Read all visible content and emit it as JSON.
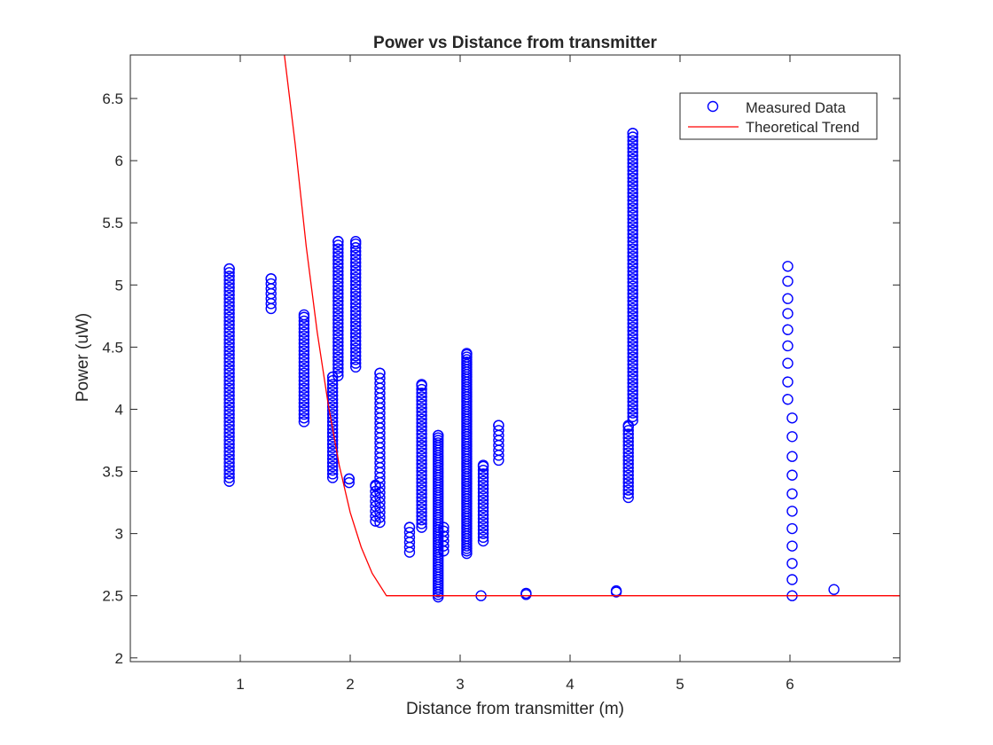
{
  "chart_data": {
    "type": "scatter",
    "title": "Power vs Distance from transmitter",
    "xlabel": "Distance from transmitter (m)",
    "ylabel": "Power (uW)",
    "xlim": [
      0.0,
      7.0
    ],
    "ylim": [
      1.97,
      6.85
    ],
    "xticks": [
      1,
      2,
      3,
      4,
      5,
      6
    ],
    "yticks": [
      2,
      2.5,
      3,
      3.5,
      4,
      4.5,
      5,
      5.5,
      6,
      6.5
    ],
    "grid": false,
    "legend_position": "top-right",
    "colors": {
      "measured": "#0000ff",
      "theoretical": "#ff0000",
      "text": "#262626",
      "axes": "#262626"
    },
    "series": [
      {
        "name": "Measured Data",
        "kind": "markers",
        "marker": "circle",
        "color": "#0000ff",
        "columns": [
          {
            "x": 0.9,
            "y_min": 3.42,
            "y_max": 5.13,
            "step": 0.03
          },
          {
            "x": 1.28,
            "y_min": 4.81,
            "y_max": 5.05,
            "step": 0.04
          },
          {
            "x": 1.58,
            "y_min": 3.9,
            "y_max": 4.76,
            "step": 0.03
          },
          {
            "x": 1.84,
            "y_min": 3.45,
            "y_max": 4.26,
            "step": 0.03
          },
          {
            "x": 1.89,
            "y_min": 4.27,
            "y_max": 5.35,
            "step": 0.03
          },
          {
            "x": 1.99,
            "y_min": 3.41,
            "y_max": 3.44,
            "step": 0.03
          },
          {
            "x": 2.05,
            "y_min": 4.34,
            "y_max": 5.35,
            "step": 0.03
          },
          {
            "x": 2.23,
            "y_min": 3.1,
            "y_max": 3.39,
            "step": 0.04
          },
          {
            "x": 2.27,
            "y_min": 3.09,
            "y_max": 4.29,
            "step": 0.04
          },
          {
            "x": 2.54,
            "y_min": 2.85,
            "y_max": 3.05,
            "step": 0.04
          },
          {
            "x": 2.65,
            "y_min": 3.05,
            "y_max": 4.2,
            "step": 0.03
          },
          {
            "x": 2.8,
            "y_min": 2.49,
            "y_max": 3.79,
            "step": 0.02
          },
          {
            "x": 2.85,
            "y_min": 2.86,
            "y_max": 3.05,
            "step": 0.04
          },
          {
            "x": 3.06,
            "y_min": 2.84,
            "y_max": 4.45,
            "step": 0.02
          },
          {
            "x": 3.21,
            "y_min": 2.94,
            "y_max": 3.55,
            "step": 0.03
          },
          {
            "x": 3.35,
            "y_min": 3.59,
            "y_max": 3.87,
            "step": 0.04
          },
          {
            "x": 4.53,
            "y_min": 3.29,
            "y_max": 3.87,
            "step": 0.03
          },
          {
            "x": 4.57,
            "y_min": 3.91,
            "y_max": 6.22,
            "step": 0.03
          }
        ],
        "points": [
          [
            3.19,
            2.5
          ],
          [
            3.6,
            2.51
          ],
          [
            3.6,
            2.52
          ],
          [
            4.42,
            2.53
          ],
          [
            4.42,
            2.54
          ],
          [
            5.98,
            5.15
          ],
          [
            5.98,
            5.03
          ],
          [
            5.98,
            4.89
          ],
          [
            5.98,
            4.77
          ],
          [
            5.98,
            4.64
          ],
          [
            5.98,
            4.51
          ],
          [
            5.98,
            4.37
          ],
          [
            5.98,
            4.22
          ],
          [
            5.98,
            4.08
          ],
          [
            6.02,
            3.93
          ],
          [
            6.02,
            3.78
          ],
          [
            6.02,
            3.62
          ],
          [
            6.02,
            3.47
          ],
          [
            6.02,
            3.32
          ],
          [
            6.02,
            3.18
          ],
          [
            6.02,
            3.04
          ],
          [
            6.02,
            2.9
          ],
          [
            6.02,
            2.76
          ],
          [
            6.02,
            2.63
          ],
          [
            6.02,
            2.5
          ],
          [
            6.4,
            2.55
          ]
        ]
      },
      {
        "name": "Theoretical Trend",
        "kind": "line",
        "color": "#ff0000",
        "x": [
          1.4,
          1.5,
          1.6,
          1.7,
          1.8,
          1.9,
          2.0,
          2.1,
          2.2,
          2.33,
          7.0
        ],
        "y": [
          6.86,
          6.13,
          5.31,
          4.62,
          4.04,
          3.55,
          3.17,
          2.89,
          2.68,
          2.5,
          2.5
        ]
      }
    ]
  }
}
